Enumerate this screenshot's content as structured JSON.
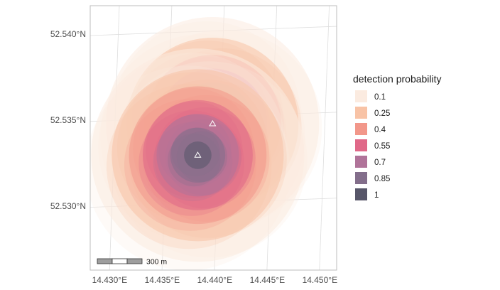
{
  "map": {
    "y_ticks": [
      {
        "lat": 52.54,
        "label": "52.540°N"
      },
      {
        "lat": 52.535,
        "label": "52.535°N"
      },
      {
        "lat": 52.53,
        "label": "52.530°N"
      }
    ],
    "x_ticks": [
      {
        "lon": 14.43,
        "label": "14.430°E"
      },
      {
        "lon": 14.435,
        "label": "14.435°E"
      },
      {
        "lon": 14.44,
        "label": "14.440°E"
      },
      {
        "lon": 14.445,
        "label": "14.445°E"
      },
      {
        "lon": 14.45,
        "label": "14.450°E"
      }
    ],
    "receivers": [
      {
        "lon": 14.4393,
        "lat": 52.5346
      },
      {
        "lon": 14.438,
        "lat": 52.5328
      }
    ],
    "radius_bands": [
      {
        "probability": 0.1,
        "radius_m": 620
      },
      {
        "probability": 0.25,
        "radius_m": 500
      },
      {
        "probability": 0.4,
        "radius_m": 400
      },
      {
        "probability": 0.55,
        "radius_m": 320
      },
      {
        "probability": 0.7,
        "radius_m": 240
      },
      {
        "probability": 0.85,
        "radius_m": 160
      },
      {
        "probability": 1,
        "radius_m": 80
      }
    ],
    "scale_bar": {
      "label": "300 m"
    },
    "graticule_color": "#dedede",
    "frame_color": "#bdbdbd"
  },
  "legend": {
    "title": "detection probability",
    "items": [
      {
        "label": "0.1",
        "color": "#fbebe0"
      },
      {
        "label": "0.25",
        "color": "#f8c3a6"
      },
      {
        "label": "0.4",
        "color": "#f2978a"
      },
      {
        "label": "0.55",
        "color": "#e06888"
      },
      {
        "label": "0.7",
        "color": "#b07399"
      },
      {
        "label": "0.85",
        "color": "#836e8b"
      },
      {
        "label": "1",
        "color": "#575669"
      }
    ]
  }
}
